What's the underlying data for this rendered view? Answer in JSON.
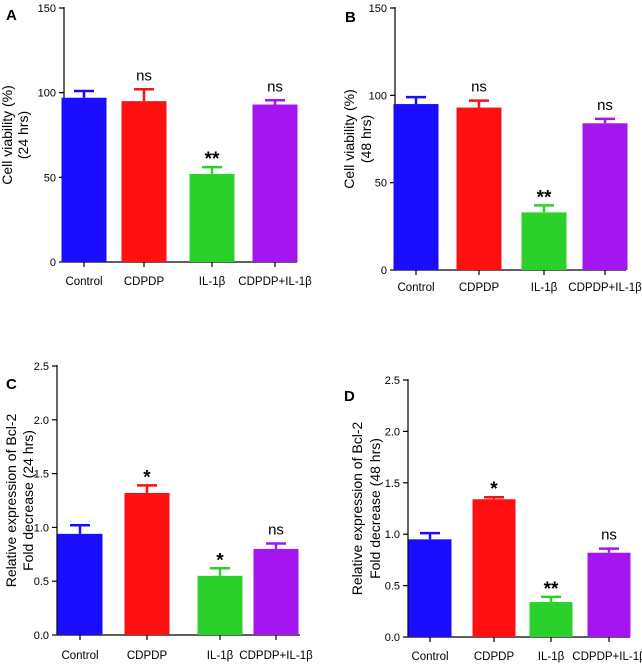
{
  "colors": {
    "axis": "#000000",
    "blue": "#1a0dff",
    "red": "#ff0f0f",
    "green": "#2bd12b",
    "purple": "#a316f0"
  },
  "chart_data": [
    {
      "panel": "A",
      "type": "bar",
      "categories": [
        "Control",
        "CDPDP",
        "IL-1β",
        "CDPDP+IL-1β"
      ],
      "values": [
        97,
        95,
        52,
        93
      ],
      "errors": [
        4,
        7,
        4,
        2.5
      ],
      "significance": [
        "",
        "ns",
        "**",
        "ns"
      ],
      "bar_colors": [
        "#1a0dff",
        "#ff0f0f",
        "#2bd12b",
        "#a316f0"
      ],
      "ylabel_lines": [
        "Cell viability (%)",
        "(24 hrs)"
      ],
      "ylim": [
        0,
        150
      ],
      "yticks": [
        0,
        50,
        100,
        150
      ],
      "ytick_labels": [
        "0",
        "50",
        "100",
        "150"
      ]
    },
    {
      "panel": "B",
      "type": "bar",
      "categories": [
        "Control",
        "CDPDP",
        "IL-1β",
        "CDPDP+IL-1β"
      ],
      "values": [
        95,
        93,
        33,
        84
      ],
      "errors": [
        4,
        4,
        4,
        2.5
      ],
      "significance": [
        "",
        "ns",
        "**",
        "ns"
      ],
      "bar_colors": [
        "#1a0dff",
        "#ff0f0f",
        "#2bd12b",
        "#a316f0"
      ],
      "ylabel_lines": [
        "Cell viability (%)",
        "(48 hrs)"
      ],
      "ylim": [
        0,
        150
      ],
      "yticks": [
        0,
        50,
        100,
        150
      ],
      "ytick_labels": [
        "0",
        "50",
        "100",
        "150"
      ]
    },
    {
      "panel": "C",
      "type": "bar",
      "categories": [
        "Control",
        "CDPDP",
        "IL-1β",
        "CDPDP+IL-1β"
      ],
      "values": [
        0.94,
        1.32,
        0.55,
        0.8
      ],
      "errors": [
        0.08,
        0.07,
        0.07,
        0.05
      ],
      "significance": [
        "",
        "*",
        "*",
        "ns"
      ],
      "bar_colors": [
        "#1a0dff",
        "#ff0f0f",
        "#2bd12b",
        "#a316f0"
      ],
      "ylabel_lines": [
        "Relative expression of Bcl-2",
        "Fold decrease (24 hrs)"
      ],
      "ylim": [
        0,
        2.5
      ],
      "yticks": [
        0,
        0.5,
        1.0,
        1.5,
        2.0,
        2.5
      ],
      "ytick_labels": [
        "0.0",
        "0.5",
        "1.0",
        "1.5",
        "2.0",
        "2.5"
      ]
    },
    {
      "panel": "D",
      "type": "bar",
      "categories": [
        "Control",
        "CDPDP",
        "IL-1β",
        "CDPDP+IL-1β"
      ],
      "values": [
        0.95,
        1.34,
        0.34,
        0.82
      ],
      "errors": [
        0.06,
        0.02,
        0.05,
        0.04
      ],
      "significance": [
        "",
        "*",
        "**",
        "ns"
      ],
      "bar_colors": [
        "#1a0dff",
        "#ff0f0f",
        "#2bd12b",
        "#a316f0"
      ],
      "ylabel_lines": [
        "Relative expression of Bcl-2",
        "Fold decrease (48 hrs)"
      ],
      "ylim": [
        0,
        2.5
      ],
      "yticks": [
        0,
        0.5,
        1.0,
        1.5,
        2.0,
        2.5
      ],
      "ytick_labels": [
        "0.0",
        "0.5",
        "1.0",
        "1.5",
        "2.0",
        "2.5"
      ]
    }
  ]
}
